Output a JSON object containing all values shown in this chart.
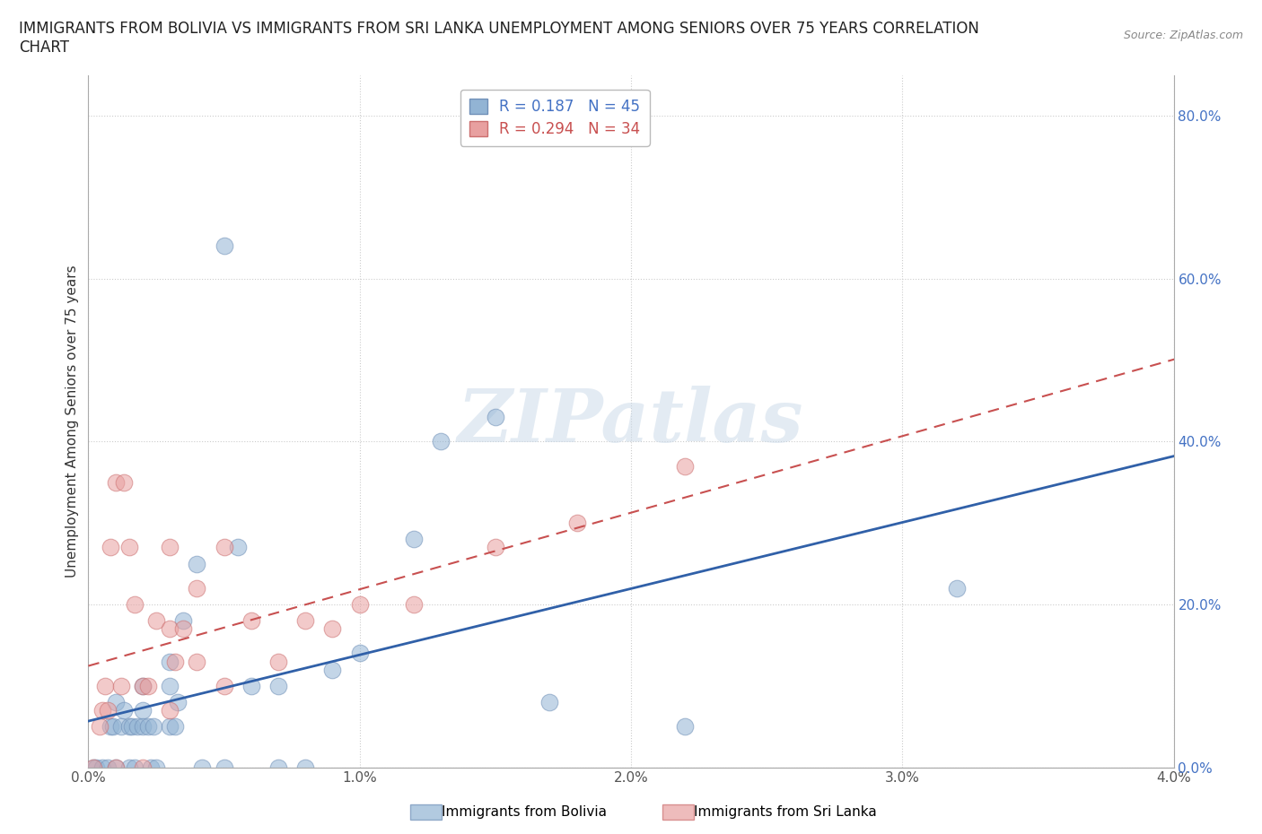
{
  "title_line1": "IMMIGRANTS FROM BOLIVIA VS IMMIGRANTS FROM SRI LANKA UNEMPLOYMENT AMONG SENIORS OVER 75 YEARS CORRELATION",
  "title_line2": "CHART",
  "source": "Source: ZipAtlas.com",
  "ylabel": "Unemployment Among Seniors over 75 years",
  "xlim": [
    0,
    0.04
  ],
  "ylim": [
    0,
    0.85
  ],
  "xticks": [
    0.0,
    0.01,
    0.02,
    0.03,
    0.04
  ],
  "xticklabels": [
    "0.0%",
    "1.0%",
    "2.0%",
    "3.0%",
    "4.0%"
  ],
  "yticks": [
    0.0,
    0.2,
    0.4,
    0.6,
    0.8
  ],
  "yticklabels": [
    "0.0%",
    "20.0%",
    "40.0%",
    "60.0%",
    "80.0%"
  ],
  "bolivia_color": "#92b4d4",
  "bolivia_edge": "#7090b8",
  "srilanka_color": "#e8a0a0",
  "srilanka_edge": "#cc7070",
  "bolivia_line_color": "#3060a8",
  "srilanka_line_color": "#c85050",
  "bolivia_R": 0.187,
  "bolivia_N": 45,
  "srilanka_R": 0.294,
  "srilanka_N": 34,
  "bolivia_x": [
    0.0002,
    0.0003,
    0.0005,
    0.0007,
    0.0008,
    0.0009,
    0.001,
    0.001,
    0.0012,
    0.0013,
    0.0015,
    0.0015,
    0.0016,
    0.0017,
    0.0018,
    0.002,
    0.002,
    0.002,
    0.0022,
    0.0023,
    0.0024,
    0.0025,
    0.003,
    0.003,
    0.003,
    0.0032,
    0.0033,
    0.0035,
    0.004,
    0.0042,
    0.005,
    0.005,
    0.0055,
    0.006,
    0.007,
    0.007,
    0.008,
    0.009,
    0.01,
    0.012,
    0.013,
    0.015,
    0.017,
    0.022,
    0.032
  ],
  "bolivia_y": [
    0.0,
    0.0,
    0.0,
    0.0,
    0.05,
    0.05,
    0.0,
    0.08,
    0.05,
    0.07,
    0.0,
    0.05,
    0.05,
    0.0,
    0.05,
    0.05,
    0.07,
    0.1,
    0.05,
    0.0,
    0.05,
    0.0,
    0.05,
    0.1,
    0.13,
    0.05,
    0.08,
    0.18,
    0.25,
    0.0,
    0.64,
    0.0,
    0.27,
    0.1,
    0.0,
    0.1,
    0.0,
    0.12,
    0.14,
    0.28,
    0.4,
    0.43,
    0.08,
    0.05,
    0.22
  ],
  "srilanka_x": [
    0.0002,
    0.0004,
    0.0005,
    0.0006,
    0.0007,
    0.0008,
    0.001,
    0.001,
    0.0012,
    0.0013,
    0.0015,
    0.0017,
    0.002,
    0.002,
    0.0022,
    0.0025,
    0.003,
    0.003,
    0.003,
    0.0032,
    0.0035,
    0.004,
    0.004,
    0.005,
    0.005,
    0.006,
    0.007,
    0.008,
    0.009,
    0.01,
    0.012,
    0.015,
    0.018,
    0.022
  ],
  "srilanka_y": [
    0.0,
    0.05,
    0.07,
    0.1,
    0.07,
    0.27,
    0.0,
    0.35,
    0.1,
    0.35,
    0.27,
    0.2,
    0.0,
    0.1,
    0.1,
    0.18,
    0.07,
    0.17,
    0.27,
    0.13,
    0.17,
    0.13,
    0.22,
    0.1,
    0.27,
    0.18,
    0.13,
    0.18,
    0.17,
    0.2,
    0.2,
    0.27,
    0.3,
    0.37
  ],
  "background_color": "#ffffff",
  "grid_color": "#cccccc",
  "watermark_text": "ZIPatlas",
  "title_fontsize": 12,
  "axis_label_fontsize": 11,
  "tick_fontsize": 11,
  "legend_fontsize": 12
}
